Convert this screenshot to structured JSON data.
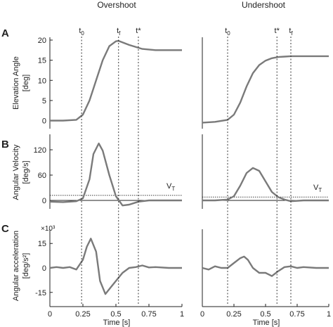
{
  "column_titles": [
    "Overshoot",
    "Undershoot"
  ],
  "panel_letters": [
    "A",
    "B",
    "C"
  ],
  "ylabels": {
    "A": [
      "Elevation Angle",
      "[deg]"
    ],
    "B": [
      "Angular Velocity",
      "[deg/s]"
    ],
    "C": [
      "Angular acceleration",
      "[deg/s²]"
    ]
  },
  "xlabel": "Time [s]",
  "c_exponent_label": "×10³",
  "threshold_label": "V_T",
  "colors": {
    "curve": "#7a7a7a",
    "axis": "#222222"
  },
  "chart_data": [
    {
      "type": "line",
      "panel": "A",
      "column": "Overshoot",
      "x": [
        0,
        0.1,
        0.2,
        0.25,
        0.3,
        0.35,
        0.4,
        0.45,
        0.5,
        0.52,
        0.6,
        0.7,
        0.8,
        0.9,
        1.0
      ],
      "y": [
        0,
        0,
        0.2,
        1.5,
        5,
        10,
        15,
        18.5,
        19.7,
        19.8,
        18.8,
        17.8,
        17.5,
        17.5,
        17.5
      ],
      "ylim": [
        -2,
        20
      ],
      "yticks": [
        0,
        5,
        10,
        15,
        20
      ],
      "xlim": [
        0,
        1
      ],
      "xticks": [
        0,
        0.25,
        0.5,
        0.75,
        1
      ],
      "markers": [
        {
          "label": "t0",
          "x": 0.24
        },
        {
          "label": "tf",
          "x": 0.52
        },
        {
          "label": "t*",
          "x": 0.67
        }
      ]
    },
    {
      "type": "line",
      "panel": "A",
      "column": "Undershoot",
      "x": [
        0,
        0.1,
        0.2,
        0.25,
        0.3,
        0.35,
        0.4,
        0.45,
        0.5,
        0.55,
        0.6,
        0.65,
        0.7,
        0.8,
        1.0
      ],
      "y": [
        -0.5,
        -0.3,
        0.2,
        1.5,
        4.5,
        8.5,
        11.8,
        13.8,
        14.9,
        15.5,
        15.8,
        15.9,
        16,
        16,
        16
      ],
      "ylim": [
        -2,
        20
      ],
      "xlim": [
        0,
        1
      ],
      "xticks": [
        0,
        0.25,
        0.5,
        0.75,
        1
      ],
      "markers": [
        {
          "label": "t0",
          "x": 0.2
        },
        {
          "label": "t*",
          "x": 0.59
        },
        {
          "label": "tf",
          "x": 0.7
        }
      ]
    },
    {
      "type": "line",
      "panel": "B",
      "column": "Overshoot",
      "x": [
        0,
        0.1,
        0.2,
        0.25,
        0.3,
        0.33,
        0.37,
        0.4,
        0.45,
        0.5,
        0.55,
        0.6,
        0.67,
        0.75,
        0.85,
        1.0
      ],
      "y": [
        -3,
        -4,
        -2,
        5,
        50,
        110,
        135,
        118,
        60,
        10,
        -12,
        -10,
        -3,
        0,
        0,
        0
      ],
      "ylim": [
        -20,
        150
      ],
      "yticks": [
        0,
        60,
        120
      ],
      "threshold": 12,
      "xlim": [
        0,
        1
      ],
      "xticks": [
        0,
        0.25,
        0.5,
        0.75,
        1
      ]
    },
    {
      "type": "line",
      "panel": "B",
      "column": "Undershoot",
      "x": [
        0,
        0.1,
        0.2,
        0.25,
        0.3,
        0.35,
        0.4,
        0.45,
        0.5,
        0.55,
        0.6,
        0.65,
        0.7,
        0.8,
        1.0
      ],
      "y": [
        0,
        0,
        2,
        10,
        35,
        65,
        77,
        70,
        45,
        20,
        8,
        2,
        -2,
        0,
        0
      ],
      "ylim": [
        -20,
        150
      ],
      "threshold": 8,
      "xlim": [
        0,
        1
      ],
      "xticks": [
        0,
        0.25,
        0.5,
        0.75,
        1
      ]
    },
    {
      "type": "line",
      "panel": "C",
      "column": "Overshoot",
      "x": [
        0,
        0.05,
        0.1,
        0.15,
        0.2,
        0.25,
        0.28,
        0.31,
        0.35,
        0.38,
        0.42,
        0.46,
        0.5,
        0.55,
        0.6,
        0.65,
        0.7,
        0.75,
        0.8,
        0.9,
        1.0
      ],
      "y": [
        0,
        0.5,
        0,
        0.5,
        -1,
        5,
        13,
        18,
        10,
        -8,
        -16,
        -12,
        -8,
        -3,
        0,
        0.5,
        1.5,
        0.3,
        0.5,
        0,
        0
      ],
      "ylim": [
        -22,
        22
      ],
      "yticks": [
        -15,
        0,
        15
      ],
      "xlim": [
        0,
        1
      ],
      "xticks": [
        0,
        0.25,
        0.5,
        0.75,
        1
      ]
    },
    {
      "type": "line",
      "panel": "C",
      "column": "Undershoot",
      "x": [
        0,
        0.05,
        0.1,
        0.15,
        0.2,
        0.25,
        0.3,
        0.33,
        0.36,
        0.4,
        0.45,
        0.5,
        0.55,
        0.6,
        0.65,
        0.7,
        0.75,
        0.8,
        0.9,
        1.0
      ],
      "y": [
        0,
        -1,
        1,
        0,
        0,
        3,
        6,
        7,
        5,
        0,
        -3,
        -3,
        -5,
        -2,
        0.5,
        1,
        0,
        0.5,
        0,
        0
      ],
      "ylim": [
        -22,
        22
      ],
      "xlim": [
        0,
        1
      ],
      "xticks": [
        0,
        0.25,
        0.5,
        0.75,
        1
      ]
    }
  ]
}
